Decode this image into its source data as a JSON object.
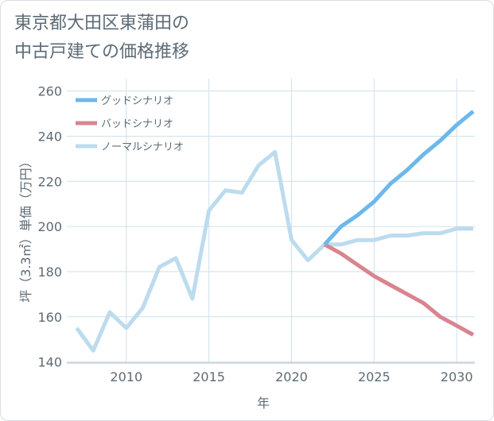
{
  "chart_data": {
    "type": "line",
    "title_lines": [
      "東京都大田区東蒲田の",
      "中古戸建ての価格推移"
    ],
    "xlabel": "年",
    "ylabel": "坪（3.3㎡）単価（万円）",
    "xlim": [
      2006.4,
      2031.1
    ],
    "ylim": [
      139.5,
      265.5
    ],
    "x_ticks": [
      2010,
      2015,
      2020,
      2025,
      2030
    ],
    "y_ticks": [
      140,
      160,
      180,
      200,
      220,
      240,
      260
    ],
    "legend_position": "top-left",
    "series": [
      {
        "name": "グッドシナリオ",
        "color": "#6cb8ec",
        "x": [
          2022,
          2023,
          2024,
          2025,
          2026,
          2027,
          2028,
          2029,
          2030,
          2031
        ],
        "values": [
          192,
          200,
          205,
          211,
          219,
          225,
          232,
          238,
          245,
          251
        ]
      },
      {
        "name": "バッドシナリオ",
        "color": "#d9848e",
        "x": [
          2022,
          2023,
          2024,
          2025,
          2026,
          2027,
          2028,
          2029,
          2030,
          2031
        ],
        "values": [
          192,
          188,
          183,
          178,
          174,
          170,
          166,
          160,
          156,
          152
        ]
      },
      {
        "name": "ノーマルシナリオ",
        "color": "#bcdcee",
        "x": [
          2007,
          2008,
          2009,
          2010,
          2011,
          2012,
          2013,
          2014,
          2015,
          2016,
          2017,
          2018,
          2019,
          2020,
          2021,
          2022,
          2023,
          2024,
          2025,
          2026,
          2027,
          2028,
          2029,
          2030,
          2031
        ],
        "values": [
          155,
          145,
          162,
          155,
          164,
          182,
          186,
          168,
          207,
          216,
          215,
          227,
          233,
          194,
          185,
          192,
          192,
          194,
          194,
          196,
          196,
          197,
          197,
          199,
          199
        ]
      }
    ]
  },
  "colors": {
    "text": "#5d6b75",
    "grid": "#cfe0ec",
    "axis": "#aab7c0"
  }
}
